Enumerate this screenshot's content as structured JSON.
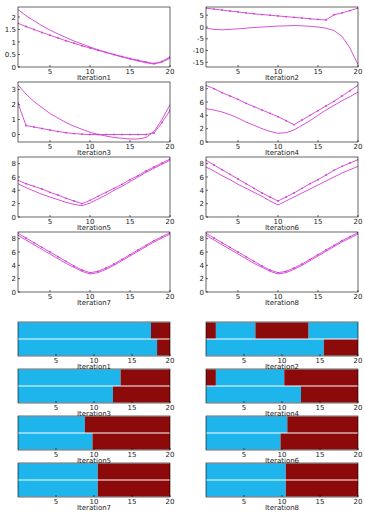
{
  "chart_data": [
    {
      "type": "line",
      "x_label": "Iteration1",
      "x": [
        1,
        2,
        3,
        4,
        5,
        6,
        7,
        8,
        9,
        10,
        11,
        12,
        13,
        14,
        15,
        16,
        17,
        18,
        19,
        20
      ],
      "xlim": [
        1,
        20
      ],
      "xticks": [
        5,
        10,
        15,
        20
      ],
      "ylim": [
        0,
        2.4
      ],
      "yticks": [
        0,
        0.5,
        1,
        1.5,
        2
      ],
      "series": [
        {
          "color": "#d23fd2",
          "marker": "dot",
          "line_style": "solid",
          "values": [
            1.75,
            1.62,
            1.5,
            1.38,
            1.27,
            1.16,
            1.05,
            0.95,
            0.85,
            0.76,
            0.67,
            0.58,
            0.5,
            0.42,
            0.34,
            0.27,
            0.2,
            0.14,
            0.22,
            0.4
          ]
        },
        {
          "color": "#d23fd2",
          "line_style": "solid",
          "values": [
            2.3,
            2.05,
            1.85,
            1.65,
            1.48,
            1.32,
            1.18,
            1.04,
            0.92,
            0.8,
            0.69,
            0.59,
            0.49,
            0.4,
            0.32,
            0.24,
            0.17,
            0.12,
            0.2,
            0.35
          ]
        }
      ]
    },
    {
      "type": "line",
      "x_label": "Iteration2",
      "x": [
        1,
        2,
        3,
        4,
        5,
        6,
        7,
        8,
        9,
        10,
        11,
        12,
        13,
        14,
        15,
        16,
        17,
        18,
        19,
        20
      ],
      "xlim": [
        1,
        20
      ],
      "xticks": [
        5,
        10,
        15,
        20
      ],
      "ylim": [
        -17,
        8.5
      ],
      "yticks": [
        -15,
        -10,
        -5,
        0,
        5
      ],
      "series": [
        {
          "color": "#d23fd2",
          "marker": "dot",
          "line_style": "solid",
          "values": [
            8,
            7.6,
            7.2,
            6.8,
            6.4,
            6,
            5.6,
            5.3,
            5,
            4.7,
            4.4,
            4.1,
            3.8,
            3.5,
            3.2,
            3,
            5.2,
            6,
            7,
            8
          ]
        },
        {
          "color": "#d23fd2",
          "line_style": "solid",
          "values": [
            -0.5,
            -1,
            -1.2,
            -1,
            -0.8,
            -0.5,
            -0.2,
            0,
            0.2,
            0.4,
            0.5,
            0.6,
            0.5,
            0.3,
            0,
            -0.5,
            -1.5,
            -4,
            -9,
            -16
          ]
        }
      ]
    },
    {
      "type": "line",
      "x_label": "Iteration3",
      "x": [
        1,
        2,
        3,
        4,
        5,
        6,
        7,
        8,
        9,
        10,
        11,
        12,
        13,
        14,
        15,
        16,
        17,
        18,
        19,
        20
      ],
      "xlim": [
        1,
        20
      ],
      "xticks": [
        5,
        10,
        15,
        20
      ],
      "ylim": [
        -0.5,
        3.5
      ],
      "yticks": [
        0,
        1,
        2,
        3
      ],
      "series": [
        {
          "color": "#d23fd2",
          "marker": "dot",
          "line_style": "solid",
          "values": [
            2.1,
            0.6,
            0.5,
            0.4,
            0.3,
            0.2,
            0.12,
            0.06,
            0.02,
            0,
            0,
            0,
            0,
            0,
            0,
            0,
            0,
            0.1,
            0.8,
            1.6
          ]
        },
        {
          "color": "#d23fd2",
          "line_style": "solid",
          "values": [
            3.3,
            2.7,
            2.2,
            1.8,
            1.4,
            1.1,
            0.8,
            0.55,
            0.35,
            0.15,
            0,
            -0.1,
            -0.2,
            -0.25,
            -0.3,
            -0.3,
            -0.2,
            0.2,
            1,
            2
          ]
        }
      ]
    },
    {
      "type": "line",
      "x_label": "Iteration4",
      "x": [
        1,
        2,
        3,
        4,
        5,
        6,
        7,
        8,
        9,
        10,
        11,
        12,
        13,
        14,
        15,
        16,
        17,
        18,
        19,
        20
      ],
      "xlim": [
        1,
        20
      ],
      "xticks": [
        5,
        10,
        15,
        20
      ],
      "ylim": [
        0,
        9
      ],
      "yticks": [
        0,
        2,
        4,
        6,
        8
      ],
      "series": [
        {
          "color": "#d23fd2",
          "marker": "dot",
          "line_style": "solid",
          "values": [
            8.5,
            8,
            7.4,
            6.9,
            6.4,
            5.8,
            5.3,
            4.8,
            4.3,
            3.8,
            3.2,
            2.6,
            3.3,
            4,
            4.7,
            5.4,
            6.1,
            6.9,
            7.7,
            8.5
          ]
        },
        {
          "color": "#d23fd2",
          "line_style": "solid",
          "values": [
            5,
            4.8,
            4.5,
            4.1,
            3.6,
            3,
            2.5,
            2,
            1.6,
            1.3,
            1.4,
            1.8,
            2.5,
            3.2,
            4,
            4.8,
            5.5,
            6.2,
            6.8,
            7.5
          ]
        }
      ]
    },
    {
      "type": "line",
      "x_label": "Iteration5",
      "x": [
        1,
        2,
        3,
        4,
        5,
        6,
        7,
        8,
        9,
        10,
        11,
        12,
        13,
        14,
        15,
        16,
        17,
        18,
        19,
        20
      ],
      "xlim": [
        1,
        20
      ],
      "xticks": [
        5,
        10,
        15,
        20
      ],
      "ylim": [
        0,
        9
      ],
      "yticks": [
        0,
        2,
        4,
        6,
        8
      ],
      "series": [
        {
          "color": "#d23fd2",
          "marker": "dot",
          "line_style": "solid",
          "values": [
            5.5,
            5,
            4.6,
            4.2,
            3.7,
            3.3,
            2.8,
            2.4,
            2,
            2.5,
            3.1,
            3.7,
            4.3,
            4.9,
            5.6,
            6.2,
            6.9,
            7.5,
            8.1,
            8.7
          ]
        },
        {
          "color": "#d23fd2",
          "line_style": "solid",
          "values": [
            5,
            4.4,
            3.9,
            3.4,
            3,
            2.6,
            2.2,
            1.9,
            1.7,
            2.1,
            2.7,
            3.3,
            4,
            4.6,
            5.3,
            6,
            6.7,
            7.3,
            7.9,
            8.5
          ]
        }
      ]
    },
    {
      "type": "line",
      "x_label": "Iteration6",
      "x": [
        1,
        2,
        3,
        4,
        5,
        6,
        7,
        8,
        9,
        10,
        11,
        12,
        13,
        14,
        15,
        16,
        17,
        18,
        19,
        20
      ],
      "xlim": [
        1,
        20
      ],
      "xticks": [
        5,
        10,
        15,
        20
      ],
      "ylim": [
        0,
        9
      ],
      "yticks": [
        0,
        2,
        4,
        6,
        8
      ],
      "series": [
        {
          "color": "#d23fd2",
          "marker": "dot",
          "line_style": "solid",
          "values": [
            8.5,
            7.8,
            7.1,
            6.4,
            5.7,
            5,
            4.3,
            3.6,
            3,
            2.4,
            3,
            3.6,
            4.3,
            5,
            5.6,
            6.3,
            7,
            7.6,
            8.1,
            8.6
          ]
        },
        {
          "color": "#d23fd2",
          "line_style": "solid",
          "values": [
            7.5,
            6.9,
            6.2,
            5.6,
            4.9,
            4.3,
            3.7,
            3.1,
            2.4,
            1.8,
            2.4,
            3,
            3.6,
            4.2,
            4.8,
            5.4,
            6,
            6.6,
            7.1,
            7.6
          ]
        }
      ]
    },
    {
      "type": "line",
      "x_label": "Iteration7",
      "x": [
        1,
        2,
        3,
        4,
        5,
        6,
        7,
        8,
        9,
        10,
        11,
        12,
        13,
        14,
        15,
        16,
        17,
        18,
        19,
        20
      ],
      "xlim": [
        1,
        20
      ],
      "xticks": [
        5,
        10,
        15,
        20
      ],
      "ylim": [
        0,
        9
      ],
      "yticks": [
        0,
        2,
        4,
        6,
        8
      ],
      "series": [
        {
          "color": "#d23fd2",
          "marker": "dot",
          "line_style": "solid",
          "values": [
            8.8,
            8.1,
            7.4,
            6.7,
            6,
            5.3,
            4.6,
            3.9,
            3.3,
            2.9,
            3.1,
            3.6,
            4.2,
            4.9,
            5.6,
            6.3,
            7,
            7.7,
            8.3,
            8.9
          ]
        },
        {
          "color": "#d23fd2",
          "line_style": "solid",
          "values": [
            8.5,
            7.8,
            7.1,
            6.4,
            5.7,
            5,
            4.3,
            3.7,
            3.1,
            2.7,
            2.9,
            3.4,
            4,
            4.7,
            5.4,
            6.1,
            6.8,
            7.5,
            8.1,
            8.7
          ]
        }
      ]
    },
    {
      "type": "line",
      "x_label": "Iteration8",
      "x": [
        1,
        2,
        3,
        4,
        5,
        6,
        7,
        8,
        9,
        10,
        11,
        12,
        13,
        14,
        15,
        16,
        17,
        18,
        19,
        20
      ],
      "xlim": [
        1,
        20
      ],
      "xticks": [
        5,
        10,
        15,
        20
      ],
      "ylim": [
        0,
        9
      ],
      "yticks": [
        0,
        2,
        4,
        6,
        8
      ],
      "series": [
        {
          "color": "#d23fd2",
          "marker": "dot",
          "line_style": "solid",
          "values": [
            8.8,
            8.1,
            7.4,
            6.7,
            6,
            5.3,
            4.6,
            3.9,
            3.3,
            2.9,
            3.1,
            3.6,
            4.2,
            4.9,
            5.6,
            6.3,
            7,
            7.7,
            8.3,
            8.9
          ]
        },
        {
          "color": "#d23fd2",
          "line_style": "solid",
          "values": [
            8.5,
            7.8,
            7.1,
            6.4,
            5.7,
            5,
            4.3,
            3.7,
            3.1,
            2.7,
            2.9,
            3.4,
            4,
            4.7,
            5.4,
            6.1,
            6.8,
            7.5,
            8.1,
            8.7
          ]
        }
      ]
    },
    {
      "type": "bar",
      "orientation": "horizontal",
      "stacked": true,
      "tick_labels": "x",
      "x_label": "Iteration1",
      "categories": [
        null,
        null
      ],
      "xlim": [
        0,
        20
      ],
      "xticks": [
        5,
        10,
        15,
        20
      ],
      "series": [
        {
          "color": "#1eb4ec",
          "values": [
            17.5,
            18.3
          ]
        },
        {
          "color": "#8c0a0a",
          "values": [
            2.5,
            1.7
          ]
        }
      ]
    },
    {
      "type": "bar",
      "orientation": "horizontal",
      "stacked": true,
      "tick_labels": "x",
      "x_label": "Iteration2",
      "categories": [
        null,
        null
      ],
      "xlim": [
        0,
        20
      ],
      "xticks": [
        5,
        10,
        15,
        20
      ],
      "series": [
        {
          "color": "#8c0a0a",
          "values": [
            1.3,
            0
          ]
        },
        {
          "color": "#1eb4ec",
          "values": [
            5.2,
            15.5
          ]
        },
        {
          "color": "#8c0a0a",
          "values": [
            7,
            4.5
          ]
        },
        {
          "color": "#1eb4ec",
          "values": [
            6.5,
            0
          ]
        }
      ]
    },
    {
      "type": "bar",
      "orientation": "horizontal",
      "stacked": true,
      "tick_labels": "x",
      "x_label": "Iteration3",
      "categories": [
        null,
        null
      ],
      "xlim": [
        0,
        20
      ],
      "xticks": [
        5,
        10,
        15,
        20
      ],
      "series": [
        {
          "color": "#1eb4ec",
          "values": [
            13.5,
            12.5
          ]
        },
        {
          "color": "#8c0a0a",
          "values": [
            6.5,
            7.5
          ]
        }
      ]
    },
    {
      "type": "bar",
      "orientation": "horizontal",
      "stacked": true,
      "tick_labels": "x",
      "x_label": "Iteration4",
      "categories": [
        null,
        null
      ],
      "xlim": [
        0,
        20
      ],
      "xticks": [
        5,
        10,
        15,
        20
      ],
      "series": [
        {
          "color": "#8c0a0a",
          "values": [
            1.3,
            0
          ]
        },
        {
          "color": "#1eb4ec",
          "values": [
            9,
            12.5
          ]
        },
        {
          "color": "#8c0a0a",
          "values": [
            9.7,
            7.5
          ]
        }
      ]
    },
    {
      "type": "bar",
      "orientation": "horizontal",
      "stacked": true,
      "tick_labels": "x",
      "x_label": "Iteration5",
      "categories": [
        null,
        null
      ],
      "xlim": [
        0,
        20
      ],
      "xticks": [
        5,
        10,
        15,
        20
      ],
      "series": [
        {
          "color": "#1eb4ec",
          "values": [
            8.8,
            9.8
          ]
        },
        {
          "color": "#8c0a0a",
          "values": [
            11.2,
            10.2
          ]
        }
      ]
    },
    {
      "type": "bar",
      "orientation": "horizontal",
      "stacked": true,
      "tick_labels": "x",
      "x_label": "Iteration6",
      "categories": [
        null,
        null
      ],
      "xlim": [
        0,
        20
      ],
      "xticks": [
        5,
        10,
        15,
        20
      ],
      "series": [
        {
          "color": "#1eb4ec",
          "values": [
            10.7,
            9.8
          ]
        },
        {
          "color": "#8c0a0a",
          "values": [
            9.3,
            10.2
          ]
        }
      ]
    },
    {
      "type": "bar",
      "orientation": "horizontal",
      "stacked": true,
      "tick_labels": "x",
      "x_label": "Iteration7",
      "categories": [
        null,
        null
      ],
      "xlim": [
        0,
        20
      ],
      "xticks": [
        5,
        10,
        15,
        20
      ],
      "series": [
        {
          "color": "#1eb4ec",
          "values": [
            10.5,
            10.5
          ]
        },
        {
          "color": "#8c0a0a",
          "values": [
            9.5,
            9.5
          ]
        }
      ]
    },
    {
      "type": "bar",
      "orientation": "horizontal",
      "stacked": true,
      "tick_labels": "x",
      "x_label": "Iteration8",
      "categories": [
        null,
        null
      ],
      "xlim": [
        0,
        20
      ],
      "xticks": [
        5,
        10,
        15,
        20
      ],
      "series": [
        {
          "color": "#1eb4ec",
          "values": [
            10.5,
            10.5
          ]
        },
        {
          "color": "#8c0a0a",
          "values": [
            9.5,
            9.5
          ]
        }
      ]
    }
  ]
}
